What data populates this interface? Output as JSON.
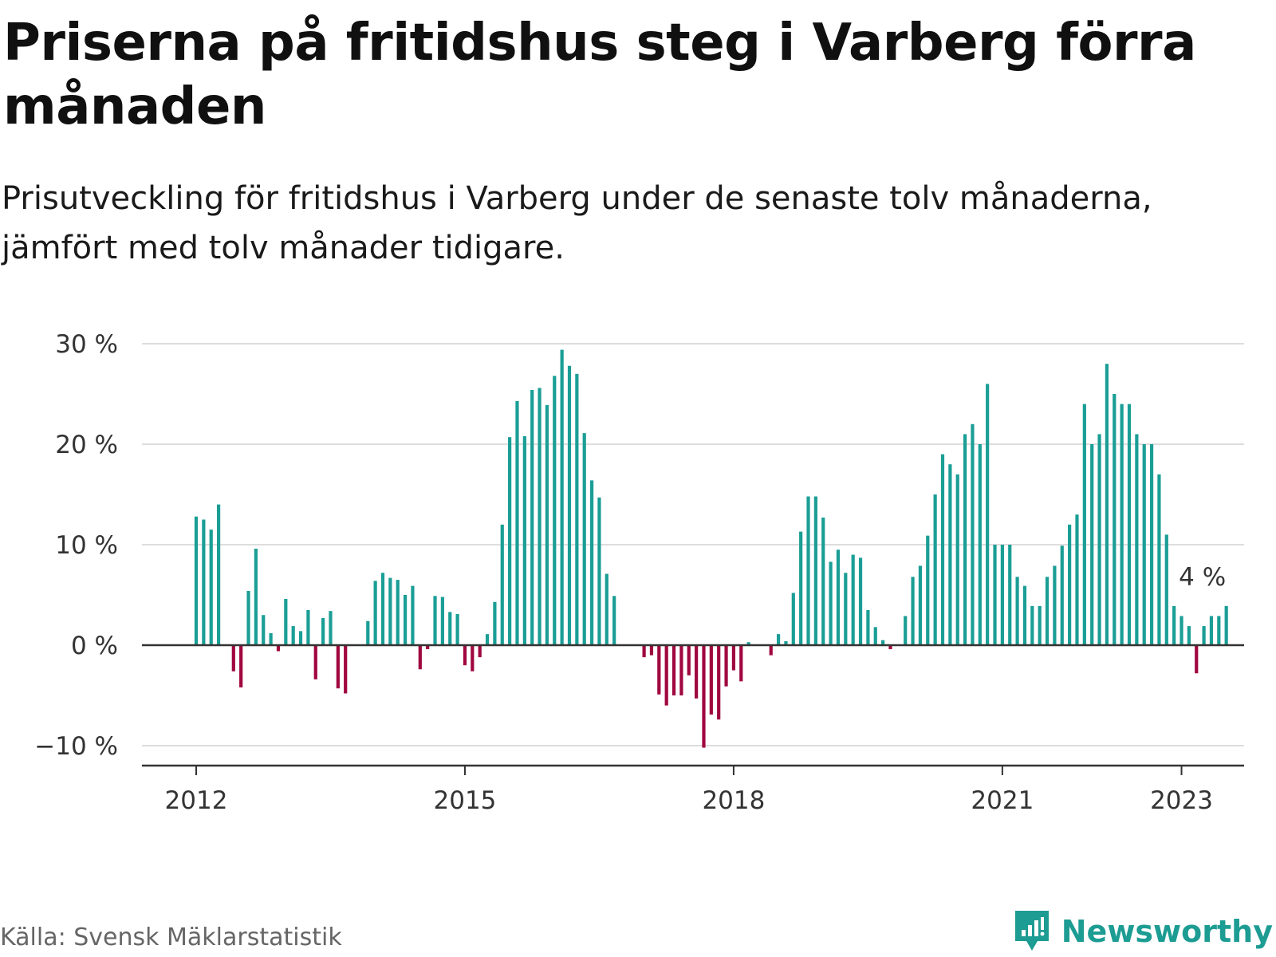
{
  "title": "Priserna på fritidshus steg i Varberg förra månaden",
  "subtitle": "Prisutveckling för fritidshus i Varberg under de senaste tolv månaderna, jämfört med tolv månader tidigare.",
  "source": "Källa: Svensk Mäklarstatistik",
  "brand": "Newsworthy",
  "colors": {
    "positive": "#1a9e96",
    "negative": "#a0063f",
    "grid": "#dddddd",
    "axis": "#333333"
  },
  "chart_data": {
    "type": "bar",
    "ylim": [
      -12,
      30
    ],
    "yticks": [
      30,
      20,
      10,
      0,
      -10
    ],
    "ytick_labels": [
      "30 %",
      "20 %",
      "10 %",
      "0 %",
      "−10 %"
    ],
    "xticks": [
      2012,
      2015,
      2018,
      2021,
      2023
    ],
    "xtick_labels": [
      "2012",
      "2015",
      "2018",
      "2021",
      "2023"
    ],
    "x_start": "2012-01",
    "x_end": "2023-01",
    "annotation": "4 %",
    "values": [
      12.8,
      12.5,
      11.5,
      14.0,
      null,
      -2.6,
      -4.2,
      5.4,
      9.6,
      3.0,
      1.2,
      -0.6,
      4.6,
      1.9,
      1.4,
      3.5,
      -3.4,
      2.7,
      3.4,
      -4.3,
      -4.8,
      null,
      null,
      2.4,
      6.4,
      7.2,
      6.7,
      6.5,
      5.0,
      5.9,
      -2.4,
      -0.4,
      4.9,
      4.8,
      3.3,
      3.1,
      -2.0,
      -2.6,
      -1.2,
      1.1,
      4.3,
      12.0,
      20.7,
      24.3,
      20.8,
      25.4,
      25.6,
      23.9,
      26.8,
      29.4,
      27.8,
      27.0,
      21.1,
      16.4,
      14.7,
      7.1,
      4.9,
      null,
      null,
      null,
      -1.2,
      -1.0,
      -4.9,
      -6.0,
      -5.0,
      -5.0,
      -3.0,
      -5.3,
      -10.2,
      -6.9,
      -7.4,
      -4.1,
      -2.5,
      -3.6,
      0.3,
      null,
      null,
      -1.0,
      1.1,
      0.4,
      5.2,
      11.3,
      14.8,
      14.8,
      12.7,
      8.3,
      9.5,
      7.2,
      9.0,
      8.7,
      3.5,
      1.8,
      0.5,
      -0.4,
      null,
      2.9,
      6.8,
      7.9,
      10.9,
      15.0,
      19.0,
      18.0,
      17.0,
      21.0,
      22.0,
      20.0,
      26.0,
      10.0,
      10.0,
      10.0,
      6.8,
      5.9,
      3.9,
      3.9,
      6.8,
      7.9,
      9.9,
      12.0,
      13.0,
      24.0,
      20.0,
      21.0,
      28.0,
      25.0,
      24.0,
      24.0,
      21.0,
      20.0,
      20.0,
      17.0,
      11.0,
      3.9,
      2.9,
      1.9,
      -2.8,
      1.9,
      2.9,
      2.9,
      3.9
    ]
  }
}
